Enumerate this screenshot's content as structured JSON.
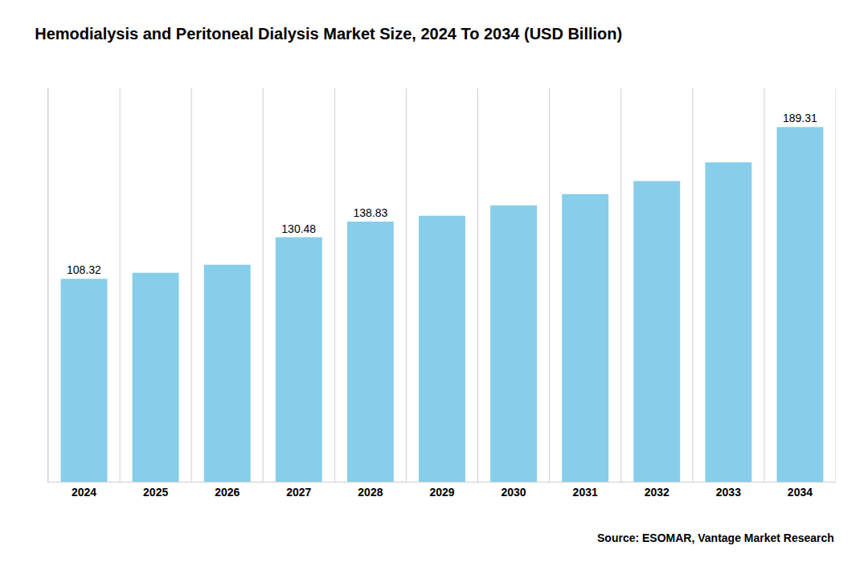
{
  "chart_data": {
    "type": "bar",
    "title": "Hemodialysis and Peritoneal Dialysis Market Size, 2024 To 2034 (USD Billion)",
    "categories": [
      "2024",
      "2025",
      "2026",
      "2027",
      "2028",
      "2029",
      "2030",
      "2031",
      "2032",
      "2033",
      "2034"
    ],
    "values": [
      108.32,
      111.5,
      115.8,
      130.48,
      138.83,
      142.0,
      147.5,
      153.5,
      160.5,
      170.5,
      189.31
    ],
    "value_labels": [
      "108.32",
      null,
      null,
      "130.48",
      "138.83",
      null,
      null,
      null,
      null,
      null,
      "189.31"
    ],
    "color": "#87CEEB",
    "ylim": [
      0,
      210
    ],
    "grid": true,
    "tick_labels": "x",
    "source": "Source: ESOMAR, Vantage Market Research"
  }
}
